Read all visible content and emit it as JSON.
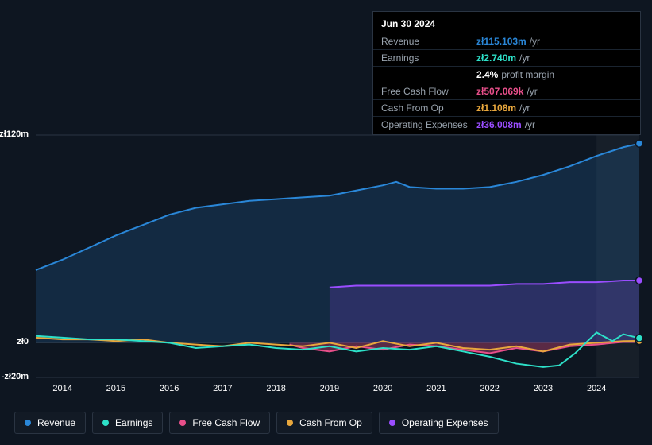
{
  "chart": {
    "type": "area",
    "background_color": "#0e1621",
    "grid_color": "#2a3442",
    "x_years": [
      "2014",
      "2015",
      "2016",
      "2017",
      "2018",
      "2019",
      "2020",
      "2021",
      "2022",
      "2023",
      "2024"
    ],
    "x_range": [
      2013.5,
      2024.8
    ],
    "y_range_m": [
      -20,
      120
    ],
    "y_ticks": [
      {
        "v": 120,
        "label": "zł120m"
      },
      {
        "v": 0,
        "label": "zł0"
      },
      {
        "v": -20,
        "label": "-zł20m"
      }
    ],
    "highlight_band_from": 2024.0,
    "highlight_band_to": 2024.8,
    "series": [
      {
        "key": "revenue",
        "label": "Revenue",
        "color": "#2a87d8",
        "area_opacity": 0.18,
        "points": [
          [
            2013.5,
            42
          ],
          [
            2014.0,
            48
          ],
          [
            2014.5,
            55
          ],
          [
            2015.0,
            62
          ],
          [
            2015.5,
            68
          ],
          [
            2016.0,
            74
          ],
          [
            2016.5,
            78
          ],
          [
            2017.0,
            80
          ],
          [
            2017.5,
            82
          ],
          [
            2018.0,
            83
          ],
          [
            2018.5,
            84
          ],
          [
            2019.0,
            85
          ],
          [
            2019.5,
            88
          ],
          [
            2020.0,
            91
          ],
          [
            2020.25,
            93
          ],
          [
            2020.5,
            90
          ],
          [
            2021.0,
            89
          ],
          [
            2021.5,
            89
          ],
          [
            2022.0,
            90
          ],
          [
            2022.5,
            93
          ],
          [
            2023.0,
            97
          ],
          [
            2023.5,
            102
          ],
          [
            2024.0,
            108
          ],
          [
            2024.5,
            113
          ],
          [
            2024.8,
            115.1
          ]
        ]
      },
      {
        "key": "operating_expenses",
        "label": "Operating Expenses",
        "color": "#9a4dff",
        "area_opacity": 0.18,
        "start_x": 2019.0,
        "points": [
          [
            2019.0,
            32
          ],
          [
            2019.5,
            33
          ],
          [
            2020.0,
            33
          ],
          [
            2020.5,
            33
          ],
          [
            2021.0,
            33
          ],
          [
            2021.5,
            33
          ],
          [
            2022.0,
            33
          ],
          [
            2022.5,
            34
          ],
          [
            2023.0,
            34
          ],
          [
            2023.5,
            35
          ],
          [
            2024.0,
            35
          ],
          [
            2024.5,
            36
          ],
          [
            2024.8,
            36.0
          ]
        ]
      },
      {
        "key": "free_cash_flow",
        "label": "Free Cash Flow",
        "color": "#e84f8a",
        "area_opacity": 0.35,
        "start_x": 2018.25,
        "points": [
          [
            2018.25,
            -1
          ],
          [
            2018.5,
            -3
          ],
          [
            2019.0,
            -5
          ],
          [
            2019.5,
            -2
          ],
          [
            2020.0,
            -4
          ],
          [
            2020.5,
            -1
          ],
          [
            2021.0,
            -2
          ],
          [
            2021.5,
            -4
          ],
          [
            2022.0,
            -6
          ],
          [
            2022.5,
            -3
          ],
          [
            2023.0,
            -5
          ],
          [
            2023.5,
            -2
          ],
          [
            2024.0,
            -1
          ],
          [
            2024.5,
            0.5
          ],
          [
            2024.8,
            0.5
          ]
        ]
      },
      {
        "key": "cash_from_op",
        "label": "Cash From Op",
        "color": "#e8a73d",
        "area_opacity": 0.0,
        "points": [
          [
            2013.5,
            3
          ],
          [
            2014.0,
            2
          ],
          [
            2014.5,
            2
          ],
          [
            2015.0,
            1
          ],
          [
            2015.5,
            2
          ],
          [
            2016.0,
            0
          ],
          [
            2016.5,
            -1
          ],
          [
            2017.0,
            -2
          ],
          [
            2017.5,
            0
          ],
          [
            2018.0,
            -1
          ],
          [
            2018.5,
            -2
          ],
          [
            2019.0,
            0
          ],
          [
            2019.5,
            -3
          ],
          [
            2020.0,
            1
          ],
          [
            2020.5,
            -2
          ],
          [
            2021.0,
            0
          ],
          [
            2021.5,
            -3
          ],
          [
            2022.0,
            -4
          ],
          [
            2022.5,
            -2
          ],
          [
            2023.0,
            -5
          ],
          [
            2023.5,
            -1
          ],
          [
            2024.0,
            0
          ],
          [
            2024.5,
            1
          ],
          [
            2024.8,
            1.1
          ]
        ]
      },
      {
        "key": "earnings",
        "label": "Earnings",
        "color": "#2de0c8",
        "area_opacity": 0.0,
        "points": [
          [
            2013.5,
            4
          ],
          [
            2014.0,
            3
          ],
          [
            2014.5,
            2
          ],
          [
            2015.0,
            2
          ],
          [
            2015.5,
            1
          ],
          [
            2016.0,
            0
          ],
          [
            2016.5,
            -3
          ],
          [
            2017.0,
            -2
          ],
          [
            2017.5,
            -1
          ],
          [
            2018.0,
            -3
          ],
          [
            2018.5,
            -4
          ],
          [
            2019.0,
            -2
          ],
          [
            2019.5,
            -5
          ],
          [
            2020.0,
            -3
          ],
          [
            2020.5,
            -4
          ],
          [
            2021.0,
            -2
          ],
          [
            2021.5,
            -5
          ],
          [
            2022.0,
            -8
          ],
          [
            2022.5,
            -12
          ],
          [
            2023.0,
            -14
          ],
          [
            2023.3,
            -13
          ],
          [
            2023.6,
            -6
          ],
          [
            2024.0,
            6
          ],
          [
            2024.3,
            1
          ],
          [
            2024.5,
            5
          ],
          [
            2024.8,
            2.7
          ]
        ]
      }
    ],
    "draw_order": [
      "revenue",
      "operating_expenses",
      "free_cash_flow",
      "cash_from_op",
      "earnings"
    ]
  },
  "tooltip": {
    "date": "Jun 30 2024",
    "rows": [
      {
        "label": "Revenue",
        "value": "zł115.103m",
        "suffix": "/yr",
        "color": "#2a87d8"
      },
      {
        "label": "Earnings",
        "value": "zł2.740m",
        "suffix": "/yr",
        "color": "#2de0c8",
        "note_strong": "2.4%",
        "note": "profit margin"
      },
      {
        "label": "Free Cash Flow",
        "value": "zł507.069k",
        "suffix": "/yr",
        "color": "#e84f8a"
      },
      {
        "label": "Cash From Op",
        "value": "zł1.108m",
        "suffix": "/yr",
        "color": "#e8a73d"
      },
      {
        "label": "Operating Expenses",
        "value": "zł36.008m",
        "suffix": "/yr",
        "color": "#9a4dff"
      }
    ]
  },
  "legend": [
    {
      "label": "Revenue",
      "color": "#2a87d8"
    },
    {
      "label": "Earnings",
      "color": "#2de0c8"
    },
    {
      "label": "Free Cash Flow",
      "color": "#e84f8a"
    },
    {
      "label": "Cash From Op",
      "color": "#e8a73d"
    },
    {
      "label": "Operating Expenses",
      "color": "#9a4dff"
    }
  ]
}
